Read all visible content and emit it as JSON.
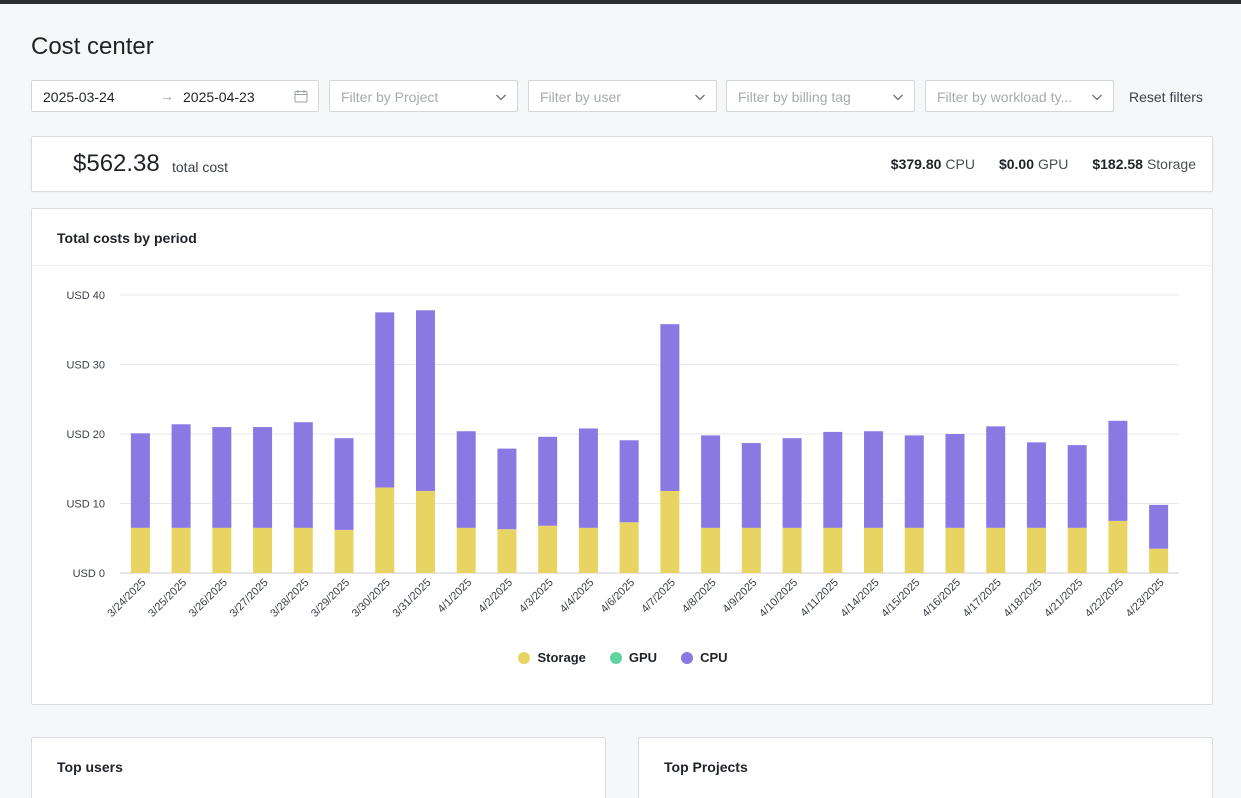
{
  "page": {
    "title": "Cost center"
  },
  "filters": {
    "date_start": "2025-03-24",
    "date_end": "2025-04-23",
    "arrow": "→",
    "project_placeholder": "Filter by Project",
    "user_placeholder": "Filter by user",
    "billing_tag_placeholder": "Filter by billing tag",
    "workload_type_placeholder": "Filter by workload ty...",
    "reset_label": "Reset filters"
  },
  "summary": {
    "total_amount": "$562.38",
    "total_label": "total cost",
    "cpu_value": "$379.80",
    "cpu_label": "CPU",
    "gpu_value": "$0.00",
    "gpu_label": "GPU",
    "storage_value": "$182.58",
    "storage_label": "Storage"
  },
  "chart_card": {
    "title": "Total costs by period"
  },
  "colors": {
    "storage": "#e8d463",
    "gpu": "#5fd39b",
    "cpu": "#8b79e3"
  },
  "chart_data": {
    "type": "bar",
    "stacked": true,
    "title": "Total costs by period",
    "categories": [
      "3/24/2025",
      "3/25/2025",
      "3/26/2025",
      "3/27/2025",
      "3/28/2025",
      "3/29/2025",
      "3/30/2025",
      "3/31/2025",
      "4/1/2025",
      "4/2/2025",
      "4/3/2025",
      "4/4/2025",
      "4/6/2025",
      "4/7/2025",
      "4/8/2025",
      "4/9/2025",
      "4/10/2025",
      "4/11/2025",
      "4/14/2025",
      "4/15/2025",
      "4/16/2025",
      "4/17/2025",
      "4/18/2025",
      "4/21/2025",
      "4/22/2025",
      "4/23/2025"
    ],
    "series": [
      {
        "name": "Storage",
        "color": "#e8d463",
        "values": [
          6.5,
          6.5,
          6.5,
          6.5,
          6.5,
          6.2,
          12.3,
          11.8,
          6.5,
          6.3,
          6.8,
          6.5,
          7.3,
          11.8,
          6.5,
          6.5,
          6.5,
          6.5,
          6.5,
          6.5,
          6.5,
          6.5,
          6.5,
          6.5,
          7.5,
          3.5
        ]
      },
      {
        "name": "GPU",
        "color": "#5fd39b",
        "values": [
          0,
          0,
          0,
          0,
          0,
          0,
          0,
          0,
          0,
          0,
          0,
          0,
          0,
          0,
          0,
          0,
          0,
          0,
          0,
          0,
          0,
          0,
          0,
          0,
          0,
          0
        ]
      },
      {
        "name": "CPU",
        "color": "#8b79e3",
        "values": [
          13.6,
          14.9,
          14.5,
          14.5,
          15.2,
          13.2,
          25.2,
          26.0,
          13.9,
          11.6,
          12.8,
          14.3,
          11.8,
          24.0,
          13.3,
          12.2,
          12.9,
          13.8,
          13.9,
          13.3,
          13.5,
          14.6,
          12.3,
          11.9,
          14.4,
          6.3
        ]
      }
    ],
    "yticks": [
      "USD 0",
      "USD 10",
      "USD 20",
      "USD 30",
      "USD 40"
    ],
    "ylim": [
      0,
      40
    ],
    "grid": true,
    "legend": "bottom-center"
  },
  "top_users": {
    "title": "Top users"
  },
  "top_projects": {
    "title": "Top Projects"
  }
}
